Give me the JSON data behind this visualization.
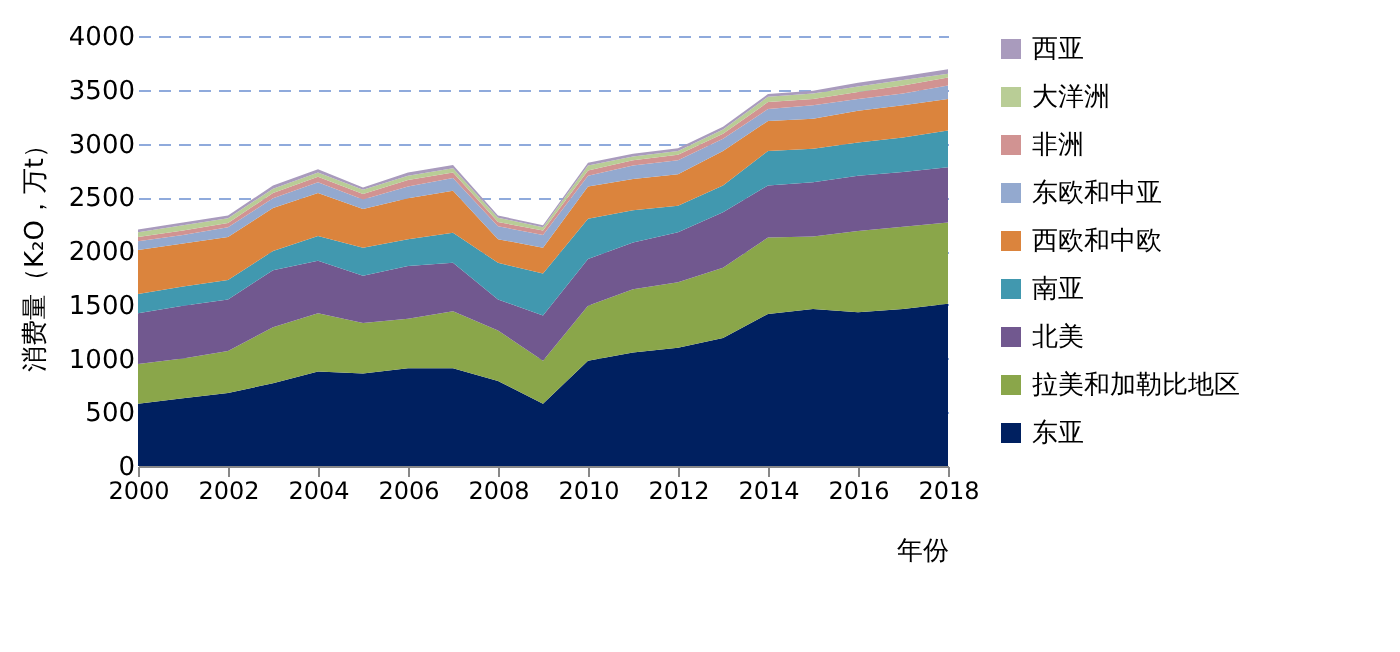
{
  "chart_data": {
    "type": "area",
    "stacked": true,
    "xlabel": "年份",
    "ylabel": "消费量（K₂O，万t）",
    "x": [
      2000,
      2001,
      2002,
      2003,
      2004,
      2005,
      2006,
      2007,
      2008,
      2009,
      2010,
      2011,
      2012,
      2013,
      2014,
      2015,
      2016,
      2017,
      2018
    ],
    "xlim": [
      2000,
      2018
    ],
    "xticks": [
      2000,
      2002,
      2004,
      2006,
      2008,
      2010,
      2012,
      2014,
      2016,
      2018
    ],
    "ylim": [
      0,
      4000
    ],
    "yticks": [
      0,
      500,
      1000,
      1500,
      2000,
      2500,
      3000,
      3500,
      4000
    ],
    "grid": "y",
    "legend": "right",
    "series": [
      {
        "name": "东亚",
        "color": "#002060",
        "values": [
          580,
          630,
          680,
          770,
          880,
          860,
          910,
          910,
          790,
          580,
          980,
          1055,
          1100,
          1190,
          1415,
          1460,
          1430,
          1460,
          1510
        ]
      },
      {
        "name": "拉美和加勒比地区",
        "color": "#8aa64a",
        "values": [
          370,
          370,
          390,
          520,
          540,
          470,
          460,
          530,
          470,
          400,
          510,
          590,
          610,
          655,
          710,
          675,
          755,
          765,
          755
        ]
      },
      {
        "name": "北美",
        "color": "#71588f",
        "values": [
          470,
          490,
          480,
          530,
          490,
          440,
          490,
          450,
          290,
          420,
          435,
          435,
          465,
          515,
          485,
          505,
          515,
          510,
          515
        ]
      },
      {
        "name": "南亚",
        "color": "#4198af",
        "values": [
          180,
          180,
          180,
          180,
          230,
          260,
          250,
          280,
          340,
          390,
          375,
          300,
          245,
          250,
          320,
          310,
          310,
          320,
          340
        ]
      },
      {
        "name": "西欧和中欧",
        "color": "#db843d",
        "values": [
          410,
          400,
          400,
          400,
          400,
          360,
          380,
          390,
          220,
          240,
          300,
          290,
          295,
          320,
          280,
          280,
          295,
          300,
          295
        ]
      },
      {
        "name": "东欧和中亚",
        "color": "#93a9cf",
        "values": [
          80,
          80,
          90,
          90,
          100,
          90,
          110,
          120,
          120,
          120,
          100,
          125,
          130,
          115,
          110,
          125,
          110,
          110,
          125
        ]
      },
      {
        "name": "非洲",
        "color": "#d19392",
        "values": [
          40,
          40,
          40,
          50,
          50,
          50,
          60,
          50,
          40,
          40,
          50,
          50,
          50,
          45,
          65,
          60,
          65,
          75,
          75
        ]
      },
      {
        "name": "大洋洲",
        "color": "#b9cd96",
        "values": [
          45,
          50,
          45,
          40,
          40,
          40,
          40,
          40,
          40,
          30,
          45,
          35,
          35,
          40,
          50,
          50,
          50,
          50,
          35
        ]
      },
      {
        "name": "西亚",
        "color": "#a99bbd",
        "values": [
          25,
          25,
          25,
          30,
          30,
          20,
          30,
          30,
          20,
          20,
          25,
          25,
          25,
          25,
          25,
          25,
          35,
          35,
          40
        ]
      }
    ]
  }
}
